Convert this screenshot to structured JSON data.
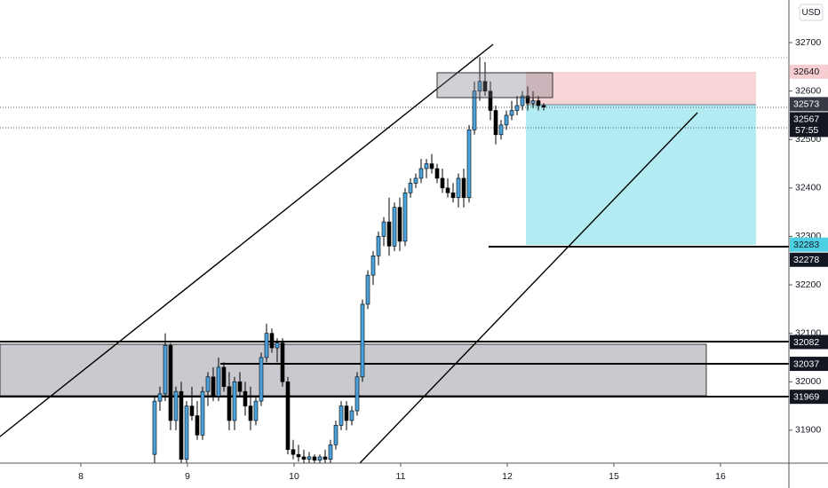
{
  "chart_data": {
    "type": "candlestick",
    "currency": "USD",
    "day_labels": [
      "8",
      "9",
      "10",
      "11",
      "12",
      "15",
      "16"
    ],
    "ylim": [
      31832,
      32788
    ],
    "yticks": [
      31900,
      32000,
      32100,
      32200,
      32300,
      32400,
      32500,
      32600,
      32700
    ],
    "bull_color": "#4aa3df",
    "bear_color": "#000000",
    "open": [
      31850,
      31960,
      31975,
      32075,
      31920,
      31980,
      31840,
      31950,
      31930,
      31890,
      31980,
      32010,
      31970,
      32030,
      31990,
      31920,
      32000,
      31980,
      31950,
      31920,
      31960,
      32050,
      32100,
      32070,
      32080,
      32000,
      31860,
      31850,
      31845,
      31840,
      31845,
      31838,
      31845,
      31840,
      31870,
      31910,
      31950,
      31920,
      31940,
      32010,
      32160,
      32220,
      32260,
      32300,
      32330,
      32280,
      32360,
      32290,
      32390,
      32410,
      32420,
      32440,
      32450,
      32440,
      32420,
      32400,
      32390,
      32380,
      32420,
      32380,
      32520,
      32600,
      32620,
      32600,
      32560,
      32510,
      32530,
      32550,
      32560,
      32570,
      32590,
      32575,
      32580,
      32570
    ],
    "high": [
      31970,
      31990,
      32100,
      32080,
      31990,
      32000,
      31960,
      31990,
      31960,
      31990,
      32020,
      32030,
      32050,
      32040,
      32020,
      32010,
      32020,
      32000,
      31990,
      31970,
      32060,
      32120,
      32110,
      32090,
      32090,
      32010,
      31880,
      31870,
      31860,
      31855,
      31850,
      31850,
      31860,
      31880,
      31920,
      31960,
      31960,
      31950,
      32020,
      32170,
      32230,
      32270,
      32310,
      32340,
      32380,
      32370,
      32380,
      32400,
      32420,
      32430,
      32460,
      32460,
      32470,
      32450,
      32440,
      32420,
      32410,
      32430,
      32440,
      32530,
      32620,
      32670,
      32660,
      32620,
      32570,
      32540,
      32560,
      32580,
      32590,
      32600,
      32610,
      32600,
      32590,
      32575
    ],
    "low": [
      31832,
      31940,
      31960,
      31900,
      31900,
      31832,
      31832,
      31920,
      31880,
      31880,
      31950,
      31960,
      31960,
      31980,
      31900,
      31900,
      31970,
      31930,
      31900,
      31910,
      31950,
      32040,
      32060,
      32040,
      31990,
      31850,
      31840,
      31835,
      31832,
      31832,
      31833,
      31832,
      31832,
      31832,
      31860,
      31900,
      31900,
      31910,
      31930,
      32000,
      32150,
      32200,
      32240,
      32280,
      32260,
      32270,
      32270,
      32280,
      32380,
      32400,
      32410,
      32420,
      32430,
      32410,
      32390,
      32380,
      32370,
      32360,
      32360,
      32370,
      32510,
      32580,
      32590,
      32540,
      32490,
      32500,
      32520,
      32540,
      32550,
      32560,
      32560,
      32565,
      32560,
      32560
    ],
    "close": [
      31960,
      31975,
      32075,
      31920,
      31980,
      31840,
      31950,
      31930,
      31890,
      31980,
      32010,
      31970,
      32030,
      31990,
      31920,
      32000,
      31980,
      31950,
      31920,
      31960,
      32050,
      32100,
      32070,
      32080,
      32000,
      31860,
      31850,
      31845,
      31840,
      31845,
      31838,
      31845,
      31840,
      31870,
      31910,
      31950,
      31920,
      31940,
      32010,
      32160,
      32220,
      32260,
      32300,
      32330,
      32280,
      32360,
      32290,
      32390,
      32410,
      32420,
      32440,
      32450,
      32440,
      32420,
      32400,
      32390,
      32380,
      32420,
      32380,
      32520,
      32600,
      32620,
      32600,
      32560,
      32510,
      32530,
      32550,
      32560,
      32570,
      32590,
      32575,
      32580,
      32570,
      32567
    ],
    "price_labels": [
      32640,
      32573,
      32567,
      32283,
      32278,
      32082,
      32037,
      31969
    ],
    "price_label_colors": [
      "#f7cdd0",
      "#363a45",
      "#131722",
      "#4dd0e1",
      "#131722",
      "#131722",
      "#131722",
      "#131722"
    ],
    "countdown": "57:55"
  }
}
